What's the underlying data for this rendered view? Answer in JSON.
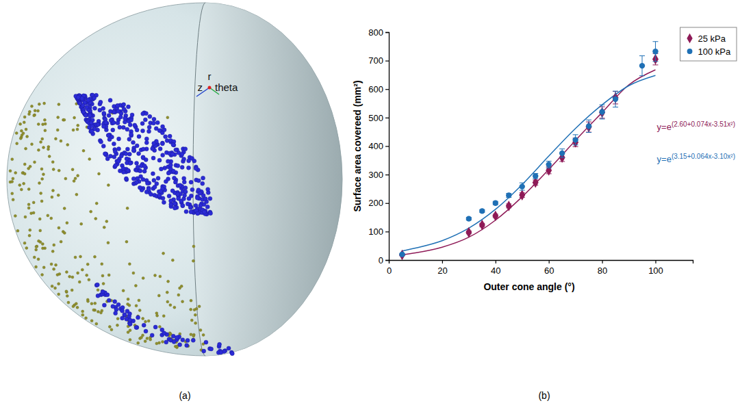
{
  "figure_a": {
    "panel_label": "(a)",
    "axis_labels": [
      "z",
      "r",
      "theta"
    ]
  },
  "chart_data": {
    "type": "scatter",
    "panel_label": "(b)",
    "x_label": "Outer cone angle (°)",
    "y_label": "Surface area covereed (mm²)",
    "xlim": [
      0,
      114
    ],
    "xticks": [
      0,
      20,
      40,
      60,
      80,
      100
    ],
    "ylim": [
      0,
      800
    ],
    "yticks": [
      0,
      100,
      200,
      300,
      400,
      500,
      600,
      700,
      800
    ],
    "grid": false,
    "legend": "upper right",
    "series": [
      {
        "name": "25 kPa",
        "color": "#8e1a57",
        "marker": "diamond",
        "x": [
          5,
          30,
          35,
          40,
          45,
          50,
          55,
          60,
          65,
          70,
          75,
          80,
          85,
          100
        ],
        "values": [
          18,
          97,
          123,
          155,
          190,
          228,
          272,
          315,
          360,
          413,
          467,
          518,
          570,
          705
        ],
        "errors": [
          3,
          5,
          6,
          6,
          7,
          8,
          9,
          12,
          14,
          15,
          18,
          20,
          22,
          20
        ]
      },
      {
        "name": "100 kPa",
        "color": "#1f70b5",
        "marker": "circle",
        "x": [
          5,
          30,
          35,
          40,
          45,
          50,
          55,
          60,
          65,
          70,
          75,
          80,
          85,
          95,
          100
        ],
        "values": [
          20,
          145,
          172,
          200,
          227,
          258,
          295,
          335,
          375,
          422,
          470,
          520,
          565,
          682,
          732
        ],
        "errors": [
          3,
          5,
          5,
          6,
          7,
          13,
          9,
          12,
          15,
          18,
          22,
          25,
          28,
          35,
          35
        ]
      }
    ],
    "fits": [
      {
        "color": "#8e1a57",
        "line_style": "solid",
        "x": [
          5,
          10,
          20,
          30,
          40,
          50,
          60,
          70,
          80,
          90,
          100
        ],
        "values": [
          18,
          25,
          45,
          80,
          140,
          222,
          318,
          420,
          518,
          615,
          668
        ]
      },
      {
        "color": "#1f70b5",
        "line_style": "solid",
        "x": [
          5,
          10,
          20,
          30,
          40,
          50,
          60,
          70,
          80,
          90,
          100
        ],
        "values": [
          32,
          42,
          68,
          112,
          178,
          265,
          365,
          462,
          545,
          612,
          648
        ]
      }
    ],
    "annotations": [
      {
        "text": "y=e",
        "superscript": "(2.60+0.074x-3.51x²)",
        "color": "#8e1a57"
      },
      {
        "text": "y=e",
        "superscript": "(3.15+0.064x-3.10x²)",
        "color": "#1f70b5"
      }
    ]
  }
}
